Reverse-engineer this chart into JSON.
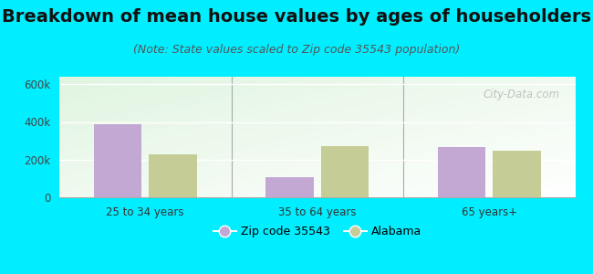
{
  "title": "Breakdown of mean house values by ages of householders",
  "subtitle": "(Note: State values scaled to Zip code 35543 population)",
  "categories": [
    "25 to 34 years",
    "35 to 64 years",
    "65 years+"
  ],
  "zip_values": [
    390000,
    107000,
    265000
  ],
  "state_values": [
    228000,
    273000,
    248000
  ],
  "zip_color": "#c4a8d4",
  "state_color": "#c5cc96",
  "ylim": [
    0,
    640000
  ],
  "yticks": [
    0,
    200000,
    400000,
    600000
  ],
  "ytick_labels": [
    "0",
    "200k",
    "400k",
    "600k"
  ],
  "background_color": "#00eeff",
  "legend_zip_label": "Zip code 35543",
  "legend_state_label": "Alabama",
  "title_fontsize": 14,
  "subtitle_fontsize": 9,
  "watermark": "City-Data.com"
}
